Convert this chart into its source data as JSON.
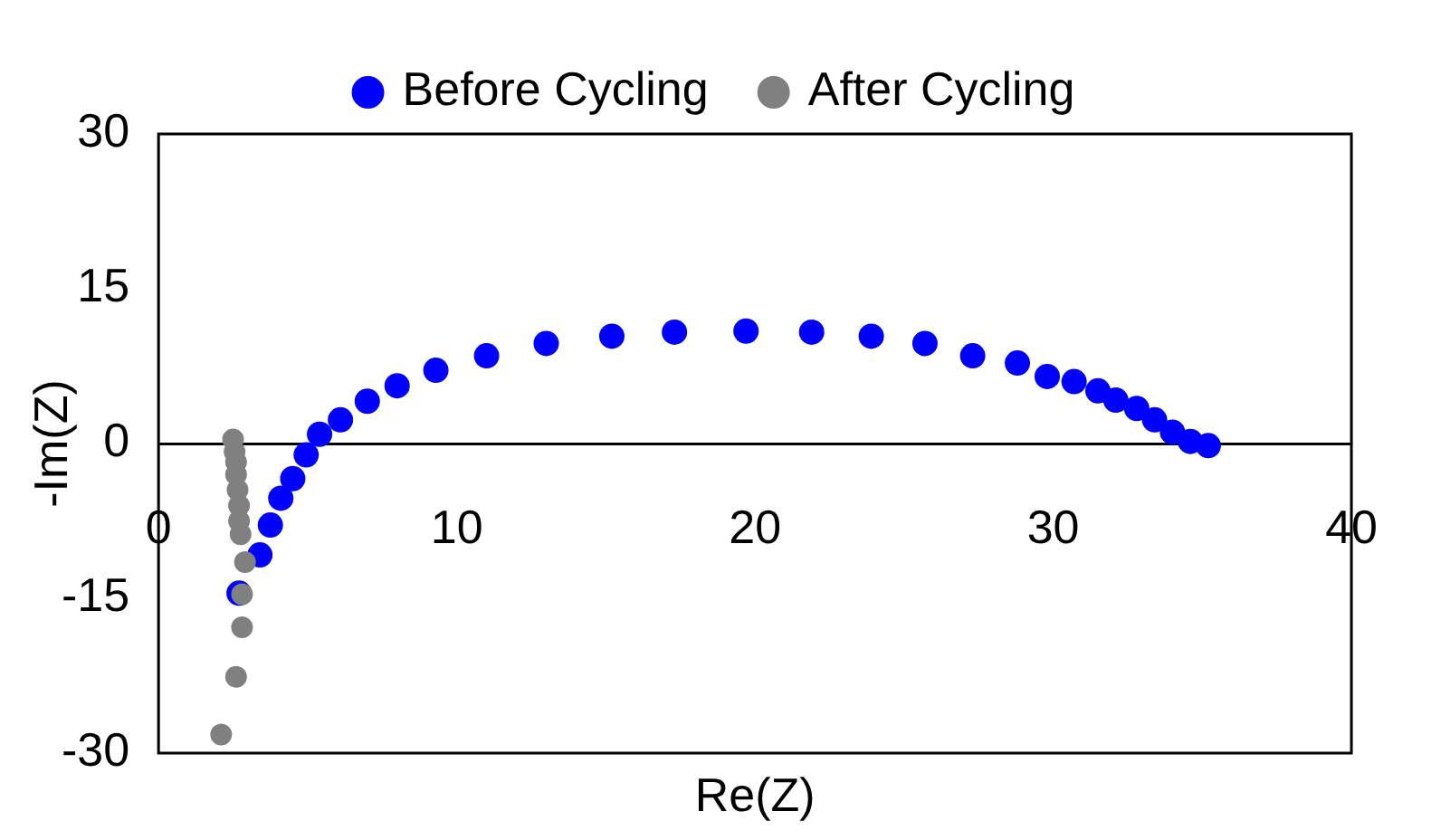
{
  "chart_data": {
    "type": "scatter",
    "xlabel": "Re(Z)",
    "ylabel": "-Im(Z)",
    "xlim": [
      0,
      40
    ],
    "xticks": [
      0,
      10,
      20,
      30,
      40
    ],
    "ylim": [
      -30,
      30
    ],
    "yticks": [
      -30,
      -15,
      0,
      15,
      30
    ],
    "grid": false,
    "legend": "top",
    "marker": "circle",
    "series": [
      {
        "name": "Before Cycling",
        "color": "#0000ff",
        "x": [
          2.7,
          3.4,
          3.75,
          4.1,
          4.5,
          4.95,
          5.4,
          6.1,
          7.0,
          8.0,
          9.3,
          11.0,
          13.0,
          15.2,
          17.3,
          19.7,
          21.9,
          23.9,
          25.7,
          27.3,
          28.8,
          29.8,
          30.7,
          31.5,
          32.1,
          32.8,
          33.4,
          34.0,
          34.6,
          35.2
        ],
        "values": [
          -14.5,
          -10.8,
          -7.9,
          -5.3,
          -3.4,
          -1.1,
          0.9,
          2.3,
          4.1,
          5.6,
          7.1,
          8.5,
          9.7,
          10.4,
          10.8,
          10.9,
          10.8,
          10.4,
          9.7,
          8.5,
          7.8,
          6.5,
          6.0,
          5.1,
          4.2,
          3.4,
          2.3,
          1.1,
          0.2,
          -0.2
        ]
      },
      {
        "name": "After Cycling",
        "color": "#808080",
        "x": [
          2.1,
          2.6,
          2.8,
          2.8,
          2.9,
          2.75,
          2.7,
          2.7,
          2.65,
          2.6,
          2.6,
          2.55,
          2.5
        ],
        "values": [
          -28.2,
          -22.6,
          -17.8,
          -14.6,
          -11.5,
          -8.8,
          -7.5,
          -6.0,
          -4.5,
          -3.0,
          -1.8,
          -0.8,
          0.4
        ]
      }
    ]
  }
}
